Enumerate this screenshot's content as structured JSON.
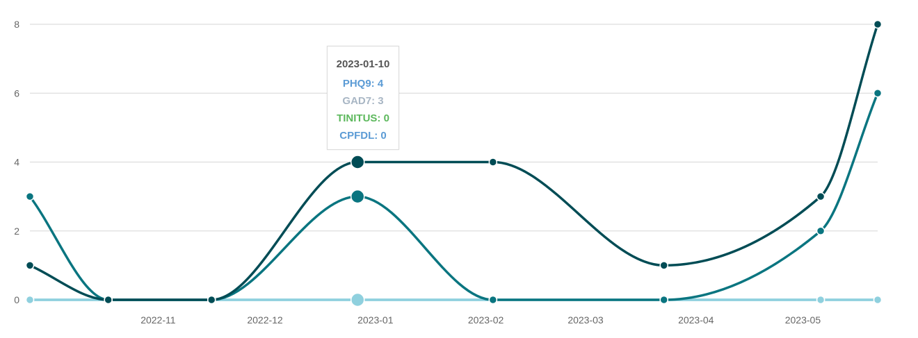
{
  "chart_data": {
    "type": "line",
    "x": [
      "2022-10-10",
      "2022-11-01",
      "2022-11-30",
      "2023-01-10",
      "2023-02-17",
      "2023-04-06",
      "2023-05-20",
      "2023-06-05"
    ],
    "series": [
      {
        "name": "PHQ9",
        "values": [
          1,
          0,
          0,
          4,
          4,
          1,
          3,
          8
        ],
        "color": "#004c55"
      },
      {
        "name": "GAD7",
        "values": [
          3,
          0,
          0,
          3,
          0,
          0,
          2,
          6
        ],
        "color": "#0a7580"
      },
      {
        "name": "TINITUS",
        "values": [
          0,
          0,
          0,
          0,
          0,
          0,
          0,
          0
        ],
        "color": "#8fd0de"
      },
      {
        "name": "CPFDL",
        "values": [
          0,
          0,
          0,
          0,
          0,
          0,
          0,
          0
        ],
        "color": "#8fd0de"
      }
    ],
    "x_tick_labels": [
      "2022-11",
      "2022-12",
      "2023-01",
      "2023-02",
      "2023-03",
      "2023-04",
      "2023-05"
    ],
    "y_ticks": [
      0,
      2,
      4,
      6,
      8
    ],
    "ylim": [
      0,
      8
    ],
    "grid": true,
    "highlight_index": 3
  },
  "tooltip": {
    "date": "2023-01-10",
    "lines": [
      "PHQ9: 4",
      "GAD7: 3",
      "TINITUS: 0",
      "CPFDL: 0"
    ]
  }
}
